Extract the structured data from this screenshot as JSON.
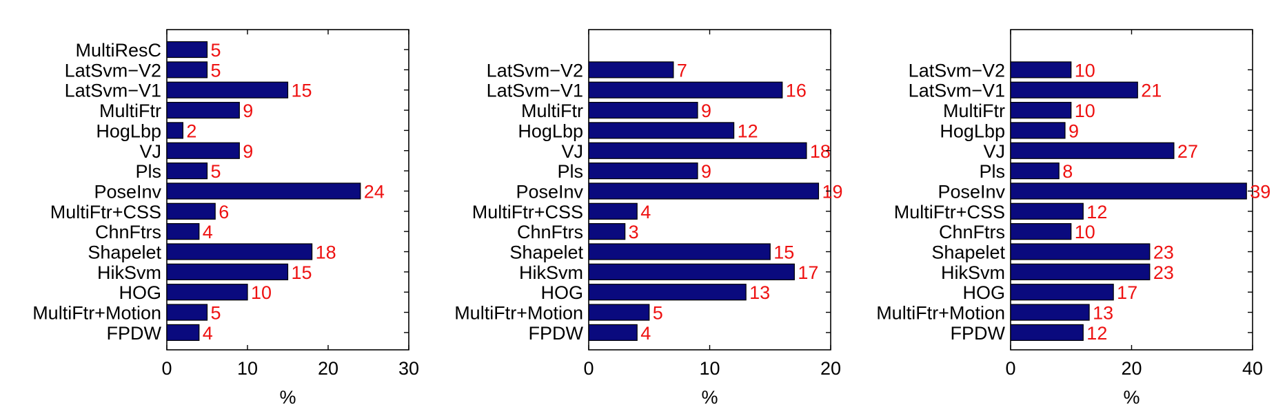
{
  "chart_data": [
    {
      "type": "bar",
      "orientation": "horizontal",
      "categories": [
        "MultiResC",
        "LatSvm−V2",
        "LatSvm−V1",
        "MultiFtr",
        "HogLbp",
        "VJ",
        "Pls",
        "PoseInv",
        "MultiFtr+CSS",
        "ChnFtrs",
        "Shapelet",
        "HikSvm",
        "HOG",
        "MultiFtr+Motion",
        "FPDW"
      ],
      "values": [
        5,
        5,
        15,
        9,
        2,
        9,
        5,
        24,
        6,
        4,
        18,
        15,
        10,
        5,
        4
      ],
      "data_labels": [
        "5",
        "5",
        "15",
        "9",
        "2",
        "9",
        "5",
        "24",
        "6",
        "4",
        "18",
        "15",
        "10",
        "5",
        "4"
      ],
      "xlabel": "%",
      "xlim": [
        0,
        30
      ],
      "xticks": [
        "0",
        "10",
        "20",
        "30"
      ],
      "grid": false,
      "bar_color": "#0a0a7e",
      "label_color": "#ee1111"
    },
    {
      "type": "bar",
      "orientation": "horizontal",
      "categories": [
        "LatSvm−V2",
        "LatSvm−V1",
        "MultiFtr",
        "HogLbp",
        "VJ",
        "Pls",
        "PoseInv",
        "MultiFtr+CSS",
        "ChnFtrs",
        "Shapelet",
        "HikSvm",
        "HOG",
        "MultiFtr+Motion",
        "FPDW"
      ],
      "values": [
        7,
        16,
        9,
        12,
        18,
        9,
        19,
        4,
        3,
        15,
        17,
        13,
        5,
        4
      ],
      "data_labels": [
        "7",
        "16",
        "9",
        "12",
        "18",
        "9",
        "19",
        "4",
        "3",
        "15",
        "17",
        "13",
        "5",
        "4"
      ],
      "xlabel": "%",
      "xlim": [
        0,
        20
      ],
      "xticks": [
        "0",
        "10",
        "20"
      ],
      "grid": false,
      "bar_color": "#0a0a7e",
      "label_color": "#ee1111"
    },
    {
      "type": "bar",
      "orientation": "horizontal",
      "categories": [
        "LatSvm−V2",
        "LatSvm−V1",
        "MultiFtr",
        "HogLbp",
        "VJ",
        "Pls",
        "PoseInv",
        "MultiFtr+CSS",
        "ChnFtrs",
        "Shapelet",
        "HikSvm",
        "HOG",
        "MultiFtr+Motion",
        "FPDW"
      ],
      "values": [
        10,
        21,
        10,
        9,
        27,
        8,
        39,
        12,
        10,
        23,
        23,
        17,
        13,
        12
      ],
      "data_labels": [
        "10",
        "21",
        "10",
        "9",
        "27",
        "8",
        "39",
        "12",
        "10",
        "23",
        "23",
        "17",
        "13",
        "12"
      ],
      "xlabel": "%",
      "xlim": [
        0,
        40
      ],
      "xticks": [
        "0",
        "20",
        "40"
      ],
      "grid": false,
      "bar_color": "#0a0a7e",
      "label_color": "#ee1111"
    }
  ]
}
